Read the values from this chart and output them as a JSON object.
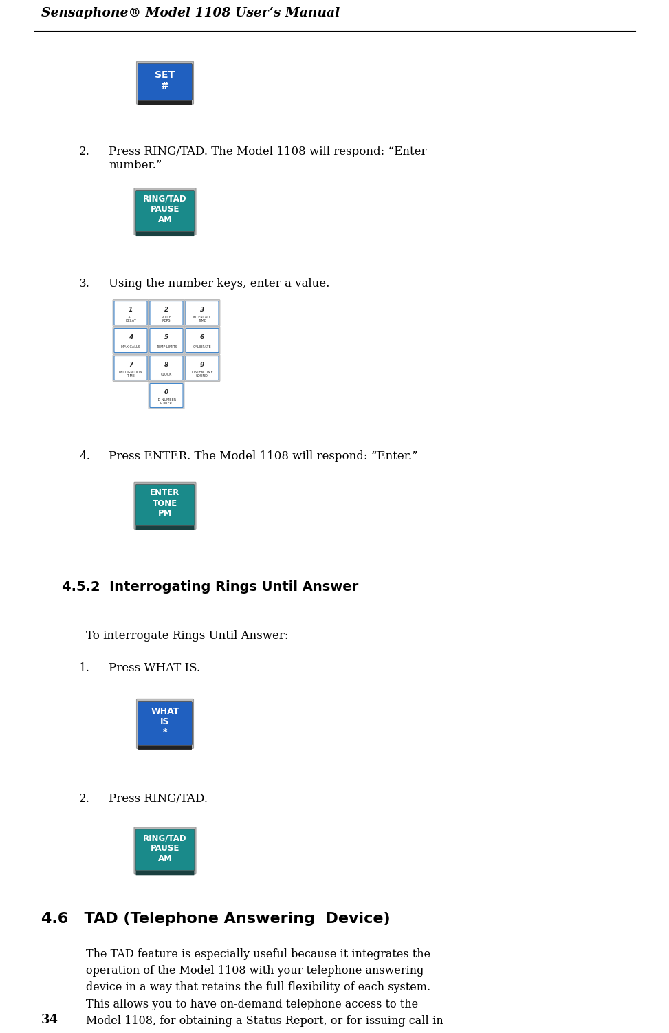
{
  "title": "Sensaphone® Model 1108 User’s Manual",
  "page_number": "34",
  "background_color": "#ffffff",
  "text_color": "#000000",
  "teal_color": "#1a8a8a",
  "blue_color": "#2060c0",
  "button_dark_blue": "#222222",
  "button_dark_teal": "#1a4040"
}
